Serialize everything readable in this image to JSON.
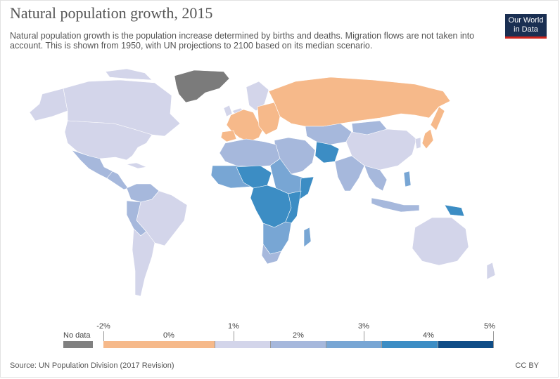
{
  "header": {
    "title": "Natural population growth, 2015",
    "subtitle": "Natural population growth is the population increase determined by births and deaths. Migration flows are not taken into account. This is shown from 1950, with UN projections to 2100 based on its median scenario.",
    "logo_line1": "Our World",
    "logo_line2": "in Data"
  },
  "legend": {
    "nodata_label": "No data",
    "nodata_color": "#808080",
    "ticks": [
      "-2%",
      "1%",
      "3%",
      "5%"
    ],
    "segments": [
      {
        "label": "0%",
        "from": -2,
        "to": 0,
        "color": "#f6b98a"
      },
      {
        "label": "",
        "from": 0,
        "to": 1,
        "color": "#d3d5ea"
      },
      {
        "label": "2%",
        "from": 1,
        "to": 2,
        "color": "#a6b8dc"
      },
      {
        "label": "",
        "from": 2,
        "to": 3,
        "color": "#78a6d4"
      },
      {
        "label": "4%",
        "from": 3,
        "to": 4,
        "color": "#3c8dc4"
      },
      {
        "label": "",
        "from": 4,
        "to": 5,
        "color": "#0f4d87"
      }
    ]
  },
  "footer": {
    "source": "Source: UN Population Division (2017 Revision)",
    "license": "CC BY"
  }
}
